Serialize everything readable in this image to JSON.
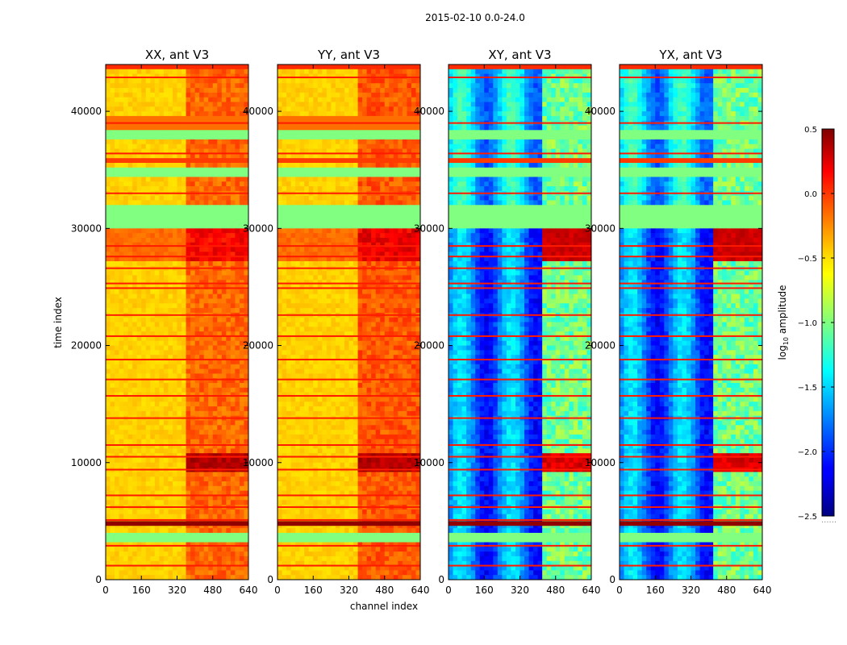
{
  "chart_data": {
    "type": "heatmap",
    "suptitle": "2015-02-10 0.0-24.0",
    "xlabel": "channel index",
    "ylabel": "time index",
    "xlim": [
      0,
      640
    ],
    "ylim": [
      0,
      44000
    ],
    "xticks": [
      "0",
      "160",
      "320",
      "480",
      "640"
    ],
    "yticks": [
      "0",
      "10000",
      "20000",
      "30000",
      "40000"
    ],
    "colormap": "jet",
    "colorbar": {
      "label_prefix": "log",
      "label_sub": "10",
      "label_suffix": " amplitude",
      "range": [
        -2.5,
        0.5
      ],
      "ticks": [
        "0.5",
        "0.0",
        "−0.5",
        "−1.0",
        "−1.5",
        "−2.0",
        "−2.5"
      ],
      "footer": "......"
    },
    "flagged_time_ranges": [
      [
        37600,
        38400
      ],
      [
        30200,
        31800
      ],
      [
        34400,
        35000
      ],
      [
        3400,
        3800
      ],
      [
        44000,
        44000
      ]
    ],
    "panels": [
      {
        "title": "XX, ant V3",
        "pol": "XX",
        "baseline_log_amp": -0.55,
        "band_log_amp": -0.3
      },
      {
        "title": "YY, ant V3",
        "pol": "YY",
        "baseline_log_amp": -0.55,
        "band_log_amp": -0.25
      },
      {
        "title": "XY, ant V3",
        "pol": "XY",
        "baseline_log_amp": -1.9,
        "band_log_amp": -1.1
      },
      {
        "title": "YX, ant V3",
        "pol": "YX",
        "baseline_log_amp": -1.9,
        "band_log_amp": -1.1
      }
    ],
    "highlighted_time_rows": [
      1200,
      2900,
      4700,
      5100,
      6200,
      7200,
      9400,
      10500,
      11500,
      13800,
      15700,
      17100,
      18800,
      20800,
      22600,
      24900,
      25300,
      26600,
      27600,
      28500,
      33000,
      35800,
      36400,
      39000,
      42900
    ]
  }
}
